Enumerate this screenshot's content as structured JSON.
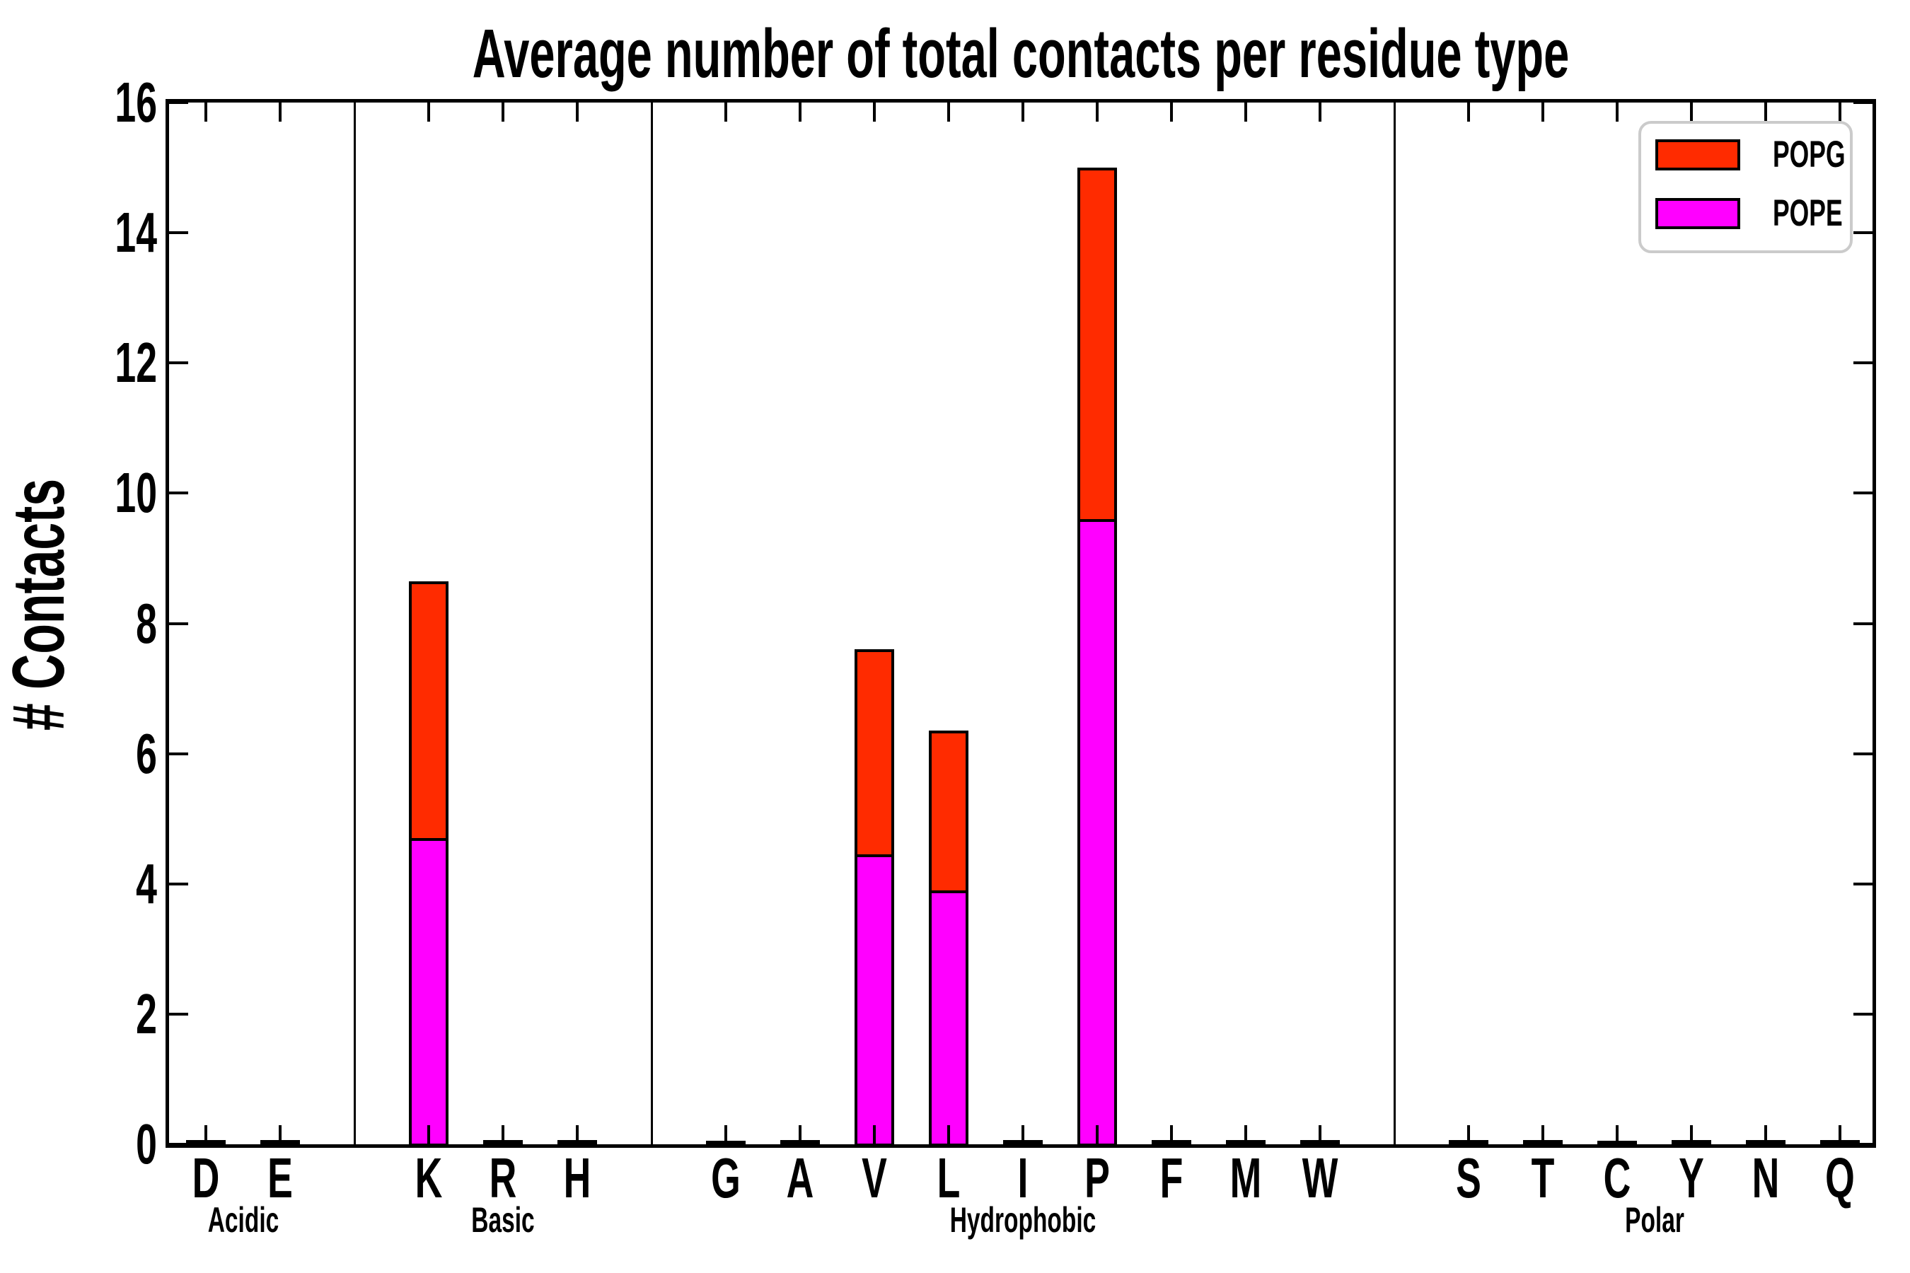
{
  "title": "Average number of total contacts per residue type",
  "y_axis": {
    "label": "# Contacts",
    "min": 0,
    "max": 16,
    "tick_step": 2,
    "tick_labels": [
      "0",
      "2",
      "4",
      "6",
      "8",
      "10",
      "12",
      "14",
      "16"
    ]
  },
  "legend": {
    "items": [
      {
        "label": "POPG",
        "color": "#FF2B00"
      },
      {
        "label": "POPE",
        "color": "#FF00FF"
      }
    ]
  },
  "colors": {
    "bar_outline": "#000000",
    "axis": "#000000",
    "legend_border": "#CBCBCB",
    "background": "#FFFFFF"
  },
  "chart_data": {
    "type": "bar",
    "stacked": true,
    "title": "Average number of total contacts per residue type",
    "xlabel": "",
    "ylabel": "# Contacts",
    "ylim": [
      0,
      16
    ],
    "ytick_interval": 2,
    "grid": false,
    "legend_position": "upper right",
    "categories": [
      "D",
      "E",
      "K",
      "R",
      "H",
      "G",
      "A",
      "V",
      "L",
      "I",
      "P",
      "F",
      "M",
      "W",
      "S",
      "T",
      "C",
      "Y",
      "N",
      "Q"
    ],
    "groups": [
      {
        "label": "Acidic",
        "residues": [
          "D",
          "E"
        ]
      },
      {
        "label": "Basic",
        "residues": [
          "K",
          "R",
          "H"
        ]
      },
      {
        "label": "Hydrophobic",
        "residues": [
          "G",
          "A",
          "V",
          "L",
          "I",
          "P",
          "F",
          "M",
          "W"
        ]
      },
      {
        "label": "Polar",
        "residues": [
          "S",
          "T",
          "C",
          "Y",
          "N",
          "Q"
        ]
      }
    ],
    "series": [
      {
        "name": "POPE",
        "color": "#FF00FF",
        "values": [
          0.03,
          0.04,
          4.7,
          0.04,
          0.03,
          0.03,
          0.03,
          4.45,
          3.9,
          0.04,
          9.6,
          0.03,
          0.03,
          0.04,
          0.03,
          0.03,
          0.03,
          0.04,
          0.03,
          0.04
        ]
      },
      {
        "name": "POPG",
        "color": "#FF2B00",
        "values": [
          0.03,
          0.03,
          3.95,
          0.03,
          0.03,
          0.02,
          0.03,
          3.15,
          2.45,
          0.03,
          5.4,
          0.03,
          0.03,
          0.03,
          0.03,
          0.03,
          0.02,
          0.03,
          0.03,
          0.03
        ]
      }
    ]
  }
}
